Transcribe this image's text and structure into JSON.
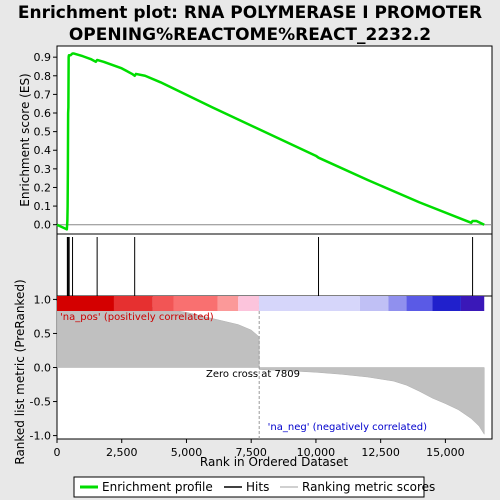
{
  "chart_data": {
    "type": "line",
    "title": "Enrichment plot: RNA POLYMERASE I PROMOTER OPENING%REACTOME%REACT_2232.2",
    "title_lines": [
      "Enrichment plot: RNA POLYMERASE I PROMOTER",
      "OPENING%REACTOME%REACT_2232.2"
    ],
    "xlabel": "Rank in Ordered Dataset",
    "xlim": [
      0,
      16800
    ],
    "x_ticks": [
      0,
      2500,
      5000,
      7500,
      10000,
      12500,
      15000
    ],
    "x_tick_labels": [
      "0",
      "2,500",
      "5,000",
      "7,500",
      "10,000",
      "12,500",
      "15,000"
    ],
    "enrichment_panel": {
      "ylabel": "Enrichment score (ES)",
      "ylim": [
        -0.05,
        0.96
      ],
      "y_ticks": [
        0.0,
        0.1,
        0.2,
        0.3,
        0.4,
        0.5,
        0.6,
        0.7,
        0.8,
        0.9
      ],
      "y_tick_labels": [
        "0.0",
        "0.1",
        "0.2",
        "0.3",
        "0.4",
        "0.5",
        "0.6",
        "0.7",
        "0.8",
        "0.9"
      ],
      "series": [
        {
          "name": "Enrichment profile",
          "color": "#00dd00",
          "x": [
            0,
            300,
            380,
            400,
            410,
            420,
            430,
            440,
            450,
            460,
            470,
            520,
            600,
            640,
            1000,
            1300,
            1500,
            1550,
            1800,
            2500,
            2900,
            3000,
            3050,
            3400,
            4000,
            6000,
            8000,
            10000,
            10100,
            12000,
            14000,
            16000,
            16050,
            16200,
            16500
          ],
          "values": [
            0.0,
            -0.02,
            -0.025,
            0.02,
            0.1,
            0.3,
            0.6,
            0.63,
            0.9,
            0.91,
            0.91,
            0.91,
            0.92,
            0.92,
            0.905,
            0.89,
            0.875,
            0.885,
            0.875,
            0.84,
            0.81,
            0.8,
            0.81,
            0.8,
            0.765,
            0.63,
            0.5,
            0.37,
            0.36,
            0.24,
            0.12,
            0.01,
            0.02,
            0.02,
            0.0
          ]
        }
      ]
    },
    "hits": {
      "name": "Hits",
      "x": [
        400,
        420,
        440,
        470,
        600,
        1550,
        3000,
        10100,
        16050
      ]
    },
    "ranking_panel": {
      "ylabel": "Ranked list metric (PreRanked)",
      "ylim": [
        -1.05,
        1.05
      ],
      "y_ticks": [
        -1.0,
        -0.5,
        0.0,
        0.5,
        1.0
      ],
      "y_tick_labels": [
        "-1.0",
        "-0.5",
        "0.0",
        "0.5",
        "1.0"
      ],
      "series_name": "Ranking metric scores",
      "profile_x": [
        0,
        500,
        1000,
        2000,
        3000,
        4000,
        5000,
        6000,
        7000,
        7500,
        7809,
        7810,
        9000,
        10000,
        11000,
        12000,
        13000,
        13500,
        14000,
        14500,
        15000,
        15500,
        16000,
        16300,
        16500
      ],
      "profile_values": [
        0.98,
        0.97,
        0.96,
        0.94,
        0.91,
        0.87,
        0.81,
        0.72,
        0.63,
        0.55,
        0.45,
        -0.03,
        -0.05,
        -0.07,
        -0.1,
        -0.14,
        -0.2,
        -0.26,
        -0.35,
        -0.45,
        -0.53,
        -0.62,
        -0.75,
        -0.86,
        -0.98
      ],
      "zero_cross_label": "Zero cross at 7809",
      "zero_cross_x": 7809,
      "pos_label": "'na_pos' (positively correlated)",
      "neg_label": "'na_neg' (negatively correlated)"
    },
    "color_bar": {
      "segments": [
        {
          "from": 0,
          "to": 2200,
          "color": "#d40000"
        },
        {
          "from": 2200,
          "to": 3700,
          "color": "#e63030"
        },
        {
          "from": 3700,
          "to": 4500,
          "color": "#f25555"
        },
        {
          "from": 4500,
          "to": 6200,
          "color": "#f97070"
        },
        {
          "from": 6200,
          "to": 7000,
          "color": "#fb9999"
        },
        {
          "from": 7000,
          "to": 7800,
          "color": "#fcc4dc"
        },
        {
          "from": 7800,
          "to": 11700,
          "color": "#d6d6fa"
        },
        {
          "from": 11700,
          "to": 12800,
          "color": "#c0c0f5"
        },
        {
          "from": 12800,
          "to": 13500,
          "color": "#9090ee"
        },
        {
          "from": 13500,
          "to": 14500,
          "color": "#5a5ae6"
        },
        {
          "from": 14500,
          "to": 15600,
          "color": "#2020cc"
        },
        {
          "from": 15600,
          "to": 16500,
          "color": "#3a18b8"
        }
      ]
    },
    "legend": {
      "placement": "bottom",
      "entries": [
        {
          "label": "Enrichment profile",
          "color": "#00dd00"
        },
        {
          "label": "Hits",
          "color": "#000000"
        },
        {
          "label": "Ranking metric scores",
          "color": "#c0c0c0"
        }
      ]
    },
    "grid": false
  }
}
